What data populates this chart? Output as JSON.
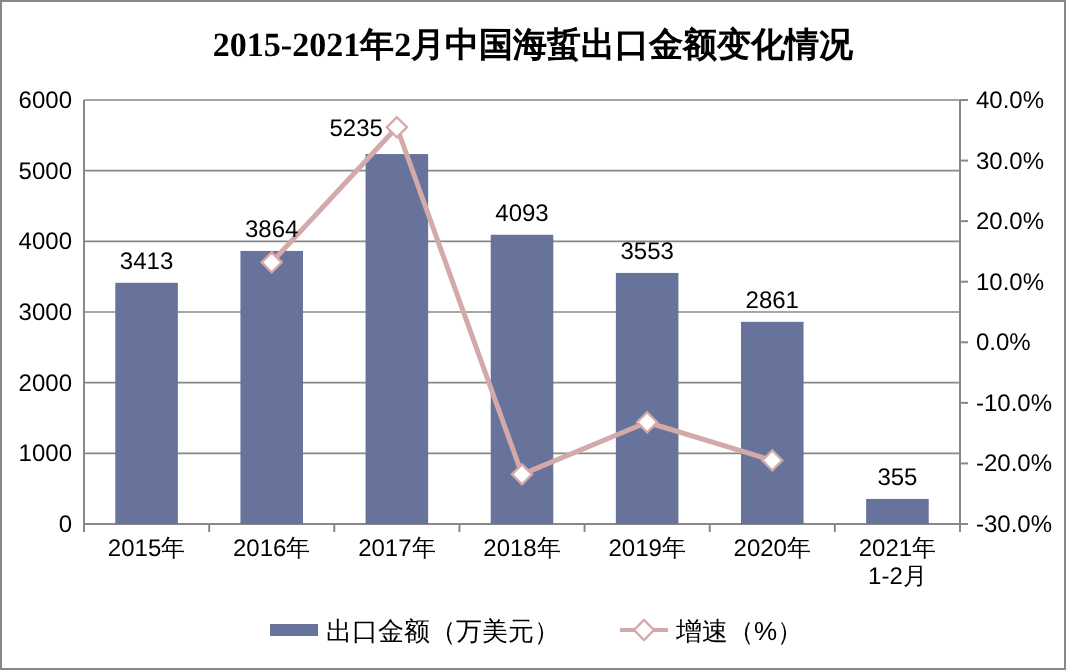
{
  "chart_data": {
    "type": "bar",
    "title": "2015-2021年2月中国海蜇出口金额变化情况",
    "categories": [
      "2015年",
      "2016年",
      "2017年",
      "2018年",
      "2019年",
      "2020年",
      "2021年\n1-2月"
    ],
    "series": [
      {
        "name": "出口金额（万美元）",
        "color": "#67739b",
        "values": [
          3413,
          3864,
          5235,
          4093,
          3553,
          2861,
          355
        ],
        "value_labels": [
          "3413",
          "3864",
          "5235",
          "4093",
          "3553",
          "2861",
          "355"
        ]
      },
      {
        "name": "增速（%）",
        "type": "line",
        "axis": "y2",
        "color": "#d4a9a9",
        "marker": "diamond",
        "line_style": "solid",
        "values": [
          null,
          13.2,
          35.5,
          -21.8,
          -13.2,
          -19.5,
          null
        ]
      }
    ],
    "ylim": [
      0,
      6000
    ],
    "yticks": [
      0,
      1000,
      2000,
      3000,
      4000,
      5000,
      6000
    ],
    "y2lim": [
      -30,
      40
    ],
    "y2ticks": [
      {
        "value": -30,
        "label": "-30.0%"
      },
      {
        "value": -20,
        "label": "-20.0%"
      },
      {
        "value": -10,
        "label": "-10.0%"
      },
      {
        "value": 0,
        "label": "0.0%"
      },
      {
        "value": 10,
        "label": "10.0%"
      },
      {
        "value": 20,
        "label": "20.0%"
      },
      {
        "value": 30,
        "label": "30.0%"
      },
      {
        "value": 40,
        "label": "40.0%"
      }
    ],
    "grid": "y",
    "legend": "bottom"
  }
}
